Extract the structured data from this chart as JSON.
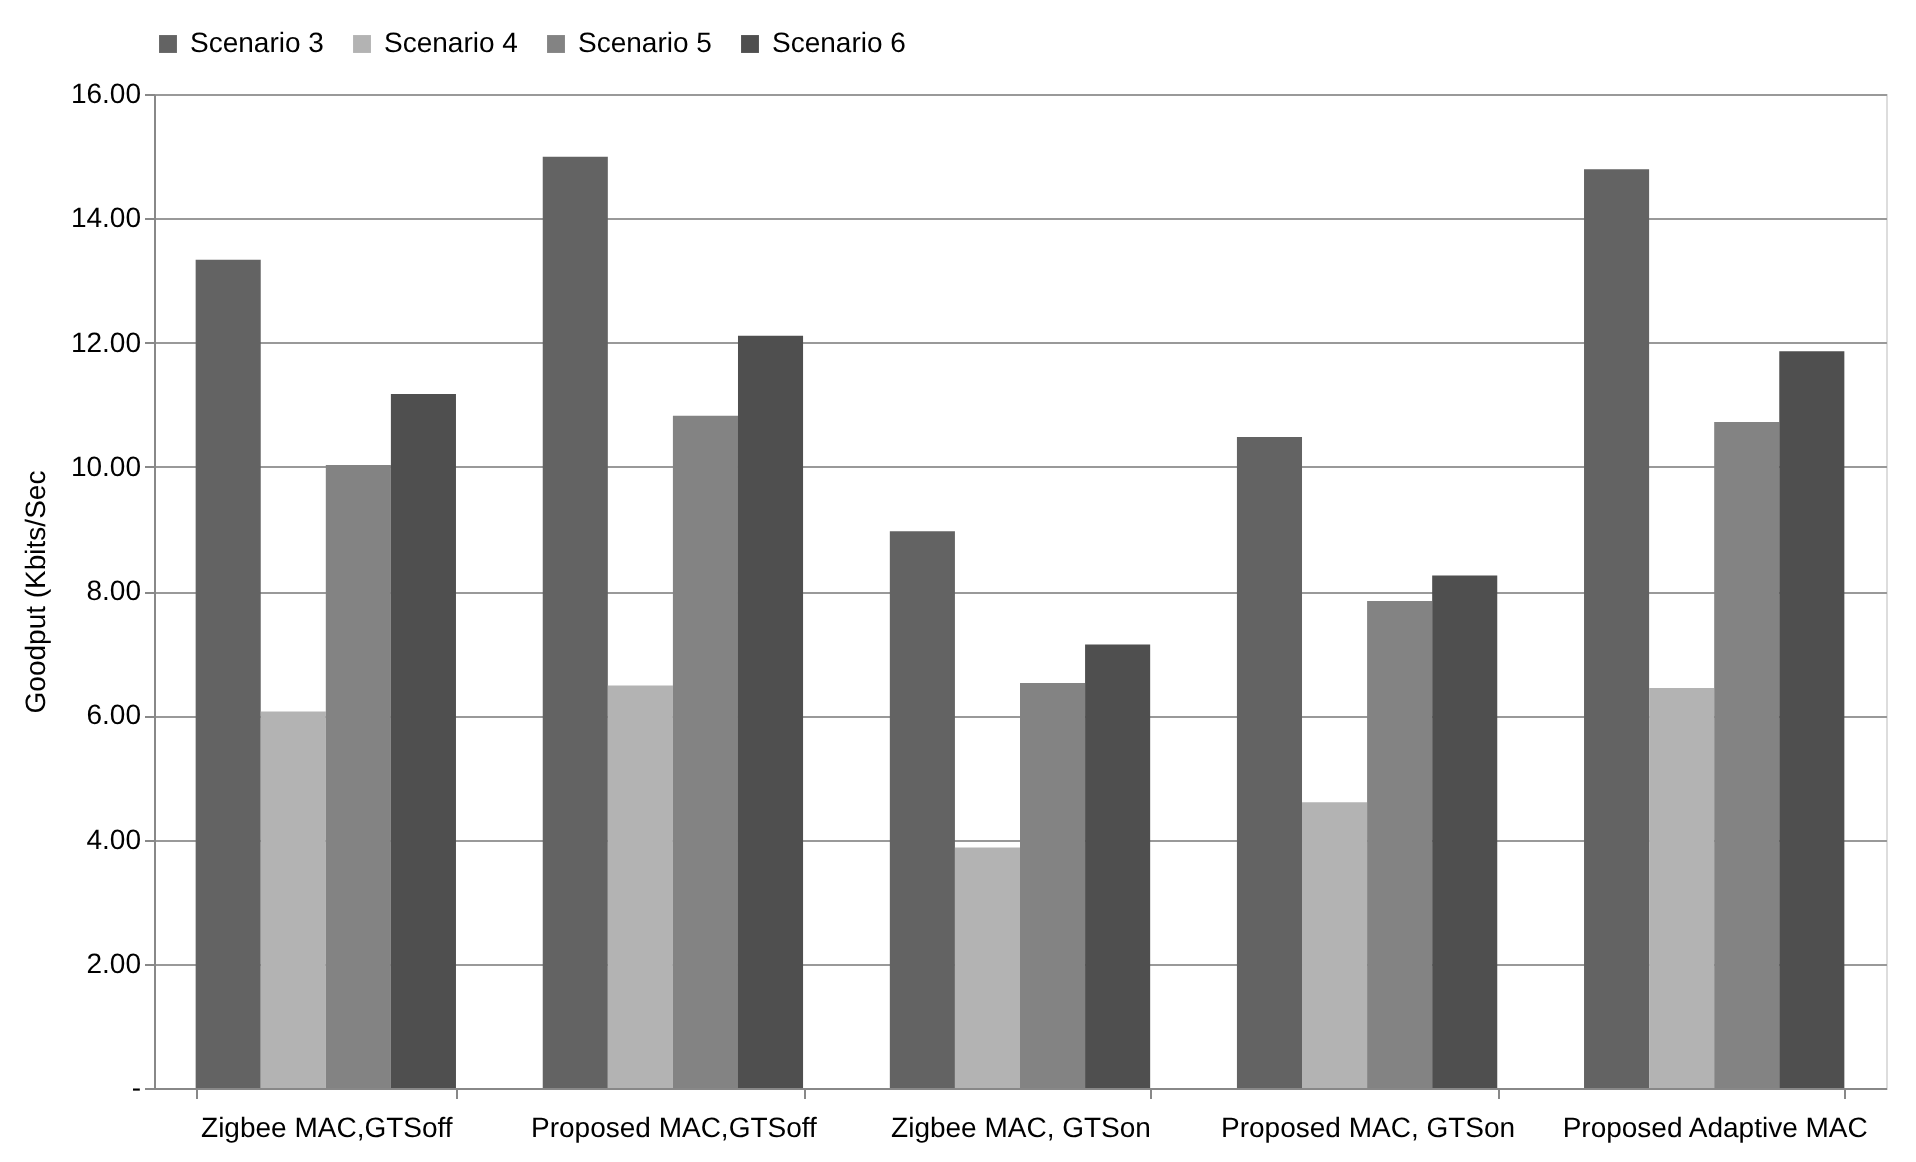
{
  "chart_data": {
    "type": "bar",
    "ylabel": "Goodput  (Kbits/Sec",
    "categories": [
      "Zigbee MAC,GTSoff",
      "Proposed MAC,GTSoff",
      "Zigbee MAC, GTSon",
      "Proposed MAC, GTSon",
      "Proposed Adaptive MAC"
    ],
    "series": [
      {
        "name": "Scenario 3",
        "color": "#636363",
        "values": [
          13.33,
          14.99,
          8.96,
          10.48,
          14.79
        ]
      },
      {
        "name": "Scenario 4",
        "color": "#b3b3b3",
        "values": [
          6.06,
          6.48,
          3.87,
          4.6,
          6.44
        ]
      },
      {
        "name": "Scenario 5",
        "color": "#838383",
        "values": [
          10.03,
          10.82,
          6.52,
          7.84,
          10.72
        ]
      },
      {
        "name": "Scenario 6",
        "color": "#4f4f4f",
        "values": [
          11.17,
          12.11,
          7.14,
          8.25,
          11.86
        ]
      }
    ],
    "ylim": [
      0,
      16
    ],
    "yticks": [
      {
        "value": 0,
        "label": "-"
      },
      {
        "value": 2,
        "label": "2.00"
      },
      {
        "value": 4,
        "label": "4.00"
      },
      {
        "value": 6,
        "label": "6.00"
      },
      {
        "value": 8,
        "label": "8.00"
      },
      {
        "value": 10,
        "label": "10.00"
      },
      {
        "value": 12,
        "label": "12.00"
      },
      {
        "value": 14,
        "label": "14.00"
      },
      {
        "value": 16,
        "label": "16.00"
      }
    ],
    "grid": "y",
    "legend": "top"
  }
}
